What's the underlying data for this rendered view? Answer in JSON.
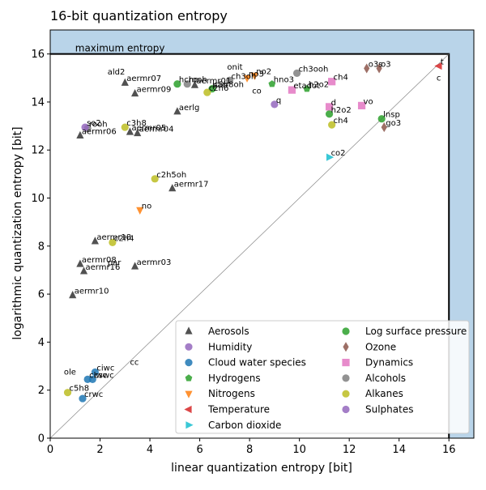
{
  "chart_data": {
    "type": "scatter",
    "title": "16-bit quantization entropy",
    "xlabel": "linear quantization entropy [bit]",
    "ylabel": "logarithmic quantization entropy [bit]",
    "xlim": [
      0,
      17
    ],
    "ylim": [
      0,
      17
    ],
    "xticks": [
      "0",
      "2",
      "4",
      "6",
      "8",
      "10",
      "12",
      "14",
      "16"
    ],
    "yticks": [
      "0",
      "2",
      "4",
      "6",
      "8",
      "10",
      "12",
      "14",
      "16"
    ],
    "max_label": "maximum entropy",
    "max_value": 16,
    "grid": false,
    "legend_position": "lower-right",
    "series": [
      {
        "name": "Aerosols",
        "color": "#333333",
        "marker": "triangle-up",
        "points": [
          {
            "x": 3.0,
            "y": 14.8,
            "label": "aermr07"
          },
          {
            "x": 3.4,
            "y": 14.35,
            "label": "aermr09"
          },
          {
            "x": 5.8,
            "y": 14.7,
            "label": "aermr01"
          },
          {
            "x": 5.1,
            "y": 13.6,
            "label": "aerlg"
          },
          {
            "x": 3.2,
            "y": 12.75,
            "label": "aermr05"
          },
          {
            "x": 3.5,
            "y": 12.7,
            "label": "aermr04"
          },
          {
            "x": 1.2,
            "y": 12.6,
            "label": "aermr06"
          },
          {
            "x": 4.9,
            "y": 10.4,
            "label": "aermr17"
          },
          {
            "x": 1.8,
            "y": 8.2,
            "label": "aermr18"
          },
          {
            "x": 1.2,
            "y": 7.25,
            "label": "aermr08"
          },
          {
            "x": 1.35,
            "y": 6.95,
            "label": "aermr16"
          },
          {
            "x": 3.4,
            "y": 7.15,
            "label": "aermr03"
          },
          {
            "x": 0.9,
            "y": 5.95,
            "label": "aermr10"
          }
        ]
      },
      {
        "name": "Humidity",
        "color": "#9467bd",
        "marker": "circle",
        "points": [
          {
            "x": 9.0,
            "y": 13.9,
            "label": "q"
          }
        ]
      },
      {
        "name": "Cloud water species",
        "color": "#1f77b4",
        "marker": "circle",
        "points": [
          {
            "x": 1.8,
            "y": 2.75,
            "label": "ciwc"
          },
          {
            "x": 1.5,
            "y": 2.45,
            "label": "clwc"
          },
          {
            "x": 1.7,
            "y": 2.45,
            "label": "cswc"
          },
          {
            "x": 1.3,
            "y": 1.65,
            "label": "crwc"
          }
        ]
      },
      {
        "name": "Hydrogens",
        "color": "#2ca02c",
        "marker": "pentagon",
        "points": [
          {
            "x": 8.9,
            "y": 14.75,
            "label": "hno3"
          },
          {
            "x": 10.3,
            "y": 14.55,
            "label": "h2o2"
          }
        ]
      },
      {
        "name": "Nitrogens",
        "color": "#ff7f0e",
        "marker": "triangle-down",
        "points": [
          {
            "x": 8.2,
            "y": 15.1,
            "label": "no2"
          },
          {
            "x": 7.9,
            "y": 15.0,
            "label": "no3"
          },
          {
            "x": 3.6,
            "y": 9.5,
            "label": "no"
          }
        ]
      },
      {
        "name": "Temperature",
        "color": "#d62728",
        "marker": "triangle-left",
        "points": [
          {
            "x": 15.6,
            "y": 15.5,
            "label": "t"
          }
        ]
      },
      {
        "name": "Carbon dioxide",
        "color": "#17becf",
        "marker": "triangle-right",
        "points": [
          {
            "x": 11.2,
            "y": 11.7,
            "label": "co2"
          }
        ]
      },
      {
        "name": "Log surface pressure",
        "color": "#2ca02c",
        "marker": "circle",
        "points": [
          {
            "x": 5.1,
            "y": 14.75,
            "label": "hcho"
          },
          {
            "x": 6.5,
            "y": 14.55,
            "label": "c5h8oh"
          },
          {
            "x": 11.2,
            "y": 13.5,
            "label": "h2o2"
          },
          {
            "x": 13.3,
            "y": 13.3,
            "label": "lnsp"
          }
        ]
      },
      {
        "name": "Ozone",
        "color": "#8c564b",
        "marker": "diamond",
        "points": [
          {
            "x": 12.7,
            "y": 15.4,
            "label": "o3s"
          },
          {
            "x": 13.2,
            "y": 15.4,
            "label": "o3"
          },
          {
            "x": 13.4,
            "y": 12.95,
            "label": "go3"
          }
        ]
      },
      {
        "name": "Dynamics",
        "color": "#e377c2",
        "marker": "square",
        "points": [
          {
            "x": 9.7,
            "y": 14.5,
            "label": "etadot"
          },
          {
            "x": 11.3,
            "y": 14.85,
            "label": "ch4"
          },
          {
            "x": 11.2,
            "y": 13.8,
            "label": "d"
          },
          {
            "x": 12.5,
            "y": 13.85,
            "label": "vo"
          }
        ]
      },
      {
        "name": "Alcohols",
        "color": "#7f7f7f",
        "marker": "circle",
        "points": [
          {
            "x": 9.9,
            "y": 15.2,
            "label": "ch3ooh"
          },
          {
            "x": 5.5,
            "y": 14.75,
            "label": "rooh"
          },
          {
            "x": 7.2,
            "y": 14.9,
            "label": "ch3oh"
          },
          {
            "x": 1.5,
            "y": 12.9,
            "label": "rooh"
          }
        ]
      },
      {
        "name": "Alkanes",
        "color": "#bcbd22",
        "marker": "circle",
        "points": [
          {
            "x": 6.3,
            "y": 14.4,
            "label": "c2h6"
          },
          {
            "x": 3.0,
            "y": 12.95,
            "label": "c3h8"
          },
          {
            "x": 4.2,
            "y": 10.8,
            "label": "c2h5oh"
          },
          {
            "x": 2.5,
            "y": 8.15,
            "label": "c2h4"
          },
          {
            "x": 0.7,
            "y": 1.9,
            "label": "c5h8"
          },
          {
            "x": 11.3,
            "y": 13.05,
            "label": "ch4"
          }
        ]
      },
      {
        "name": "Sulphates",
        "color": "#9467bd",
        "marker": "circle",
        "points": [
          {
            "x": 1.4,
            "y": 12.95,
            "label": "so2"
          }
        ]
      }
    ],
    "annotations": [
      {
        "x": 2.3,
        "y": 15.15,
        "label": "ald2"
      },
      {
        "x": 7.1,
        "y": 15.35,
        "label": "onit"
      },
      {
        "x": 8.1,
        "y": 14.35,
        "label": "co"
      },
      {
        "x": 6.5,
        "y": 14.6,
        "label": "pan"
      },
      {
        "x": 15.5,
        "y": 14.9,
        "label": "c"
      },
      {
        "x": 3.2,
        "y": 3.05,
        "label": "cc"
      },
      {
        "x": 0.55,
        "y": 2.65,
        "label": "ole"
      },
      {
        "x": 2.3,
        "y": 7.2,
        "label": "par"
      }
    ]
  }
}
